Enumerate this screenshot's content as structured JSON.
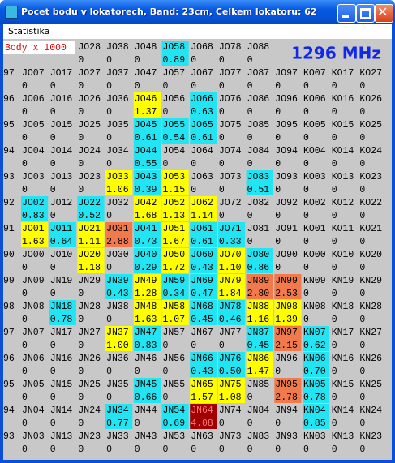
{
  "window": {
    "title": "Pocet bodu v lokatorech,  Band: 23cm,  Celkem lokatoru: 62",
    "menu": [
      "Statistika"
    ]
  },
  "label": "Body x 1000",
  "band_label": "1296 MHz",
  "top_row": [
    [
      "JO28",
      "0"
    ],
    [
      "JO38",
      "0"
    ],
    [
      "JO48",
      "0"
    ],
    [
      "JO58",
      "0.89",
      "#22e4f2"
    ],
    [
      "JO68",
      "0"
    ],
    [
      "JO78",
      "0"
    ],
    [
      "JO88",
      "0"
    ]
  ],
  "rows": [
    {
      "prefix": "97",
      "cells": [
        [
          "JO07",
          "0"
        ],
        [
          "JO17",
          "0"
        ],
        [
          "JO27",
          "0"
        ],
        [
          "JO37",
          "0"
        ],
        [
          "JO47",
          "0"
        ],
        [
          "JO57",
          "0"
        ],
        [
          "JO67",
          "0"
        ],
        [
          "JO77",
          "0"
        ],
        [
          "JO87",
          "0"
        ],
        [
          "JO97",
          "0"
        ],
        [
          "KO07",
          "0"
        ],
        [
          "KO17",
          "0"
        ],
        [
          "KO27",
          "0"
        ]
      ]
    },
    {
      "prefix": "96",
      "cells": [
        [
          "JO06",
          "0"
        ],
        [
          "JO16",
          "0"
        ],
        [
          "JO26",
          "0"
        ],
        [
          "JO36",
          "0"
        ],
        [
          "JO46",
          "1.37",
          "#ffff00"
        ],
        [
          "JO56",
          "0"
        ],
        [
          "JO66",
          "0.63",
          "#22e4f2"
        ],
        [
          "JO76",
          "0"
        ],
        [
          "JO86",
          "0"
        ],
        [
          "JO96",
          "0"
        ],
        [
          "KO06",
          "0"
        ],
        [
          "KO16",
          "0"
        ],
        [
          "KO26",
          "0"
        ]
      ]
    },
    {
      "prefix": "95",
      "cells": [
        [
          "JO05",
          "0"
        ],
        [
          "JO15",
          "0"
        ],
        [
          "JO25",
          "0"
        ],
        [
          "JO35",
          "0"
        ],
        [
          "JO45",
          "0.61",
          "#22e4f2"
        ],
        [
          "JO55",
          "0.54",
          "#22e4f2"
        ],
        [
          "JO65",
          "0.61",
          "#22e4f2"
        ],
        [
          "JO75",
          "0"
        ],
        [
          "JO85",
          "0"
        ],
        [
          "JO95",
          "0"
        ],
        [
          "KO05",
          "0"
        ],
        [
          "KO15",
          "0"
        ],
        [
          "KO25",
          "0"
        ]
      ]
    },
    {
      "prefix": "94",
      "cells": [
        [
          "JO04",
          "0"
        ],
        [
          "JO14",
          "0"
        ],
        [
          "JO24",
          "0"
        ],
        [
          "JO34",
          "0"
        ],
        [
          "JO44",
          "0.55",
          "#22e4f2"
        ],
        [
          "JO54",
          "0"
        ],
        [
          "JO64",
          "0"
        ],
        [
          "JO74",
          "0"
        ],
        [
          "JO84",
          "0"
        ],
        [
          "JO94",
          "0"
        ],
        [
          "KO04",
          "0"
        ],
        [
          "KO14",
          "0"
        ],
        [
          "KO24",
          "0"
        ]
      ]
    },
    {
      "prefix": "93",
      "cells": [
        [
          "JO03",
          "0"
        ],
        [
          "JO13",
          "0"
        ],
        [
          "JO23",
          "0"
        ],
        [
          "JO33",
          "1.06",
          "#ffff00"
        ],
        [
          "JO43",
          "0.39",
          "#22e4f2"
        ],
        [
          "JO53",
          "1.15",
          "#ffff00"
        ],
        [
          "JO63",
          "0"
        ],
        [
          "JO73",
          "0"
        ],
        [
          "JO83",
          "0.51",
          "#22e4f2"
        ],
        [
          "JO93",
          "0"
        ],
        [
          "KO03",
          "0"
        ],
        [
          "KO13",
          "0"
        ],
        [
          "KO23",
          "0"
        ]
      ]
    },
    {
      "prefix": "92",
      "cells": [
        [
          "JO02",
          "0.83",
          "#22e4f2"
        ],
        [
          "JO12",
          "0"
        ],
        [
          "JO22",
          "0.52",
          "#22e4f2"
        ],
        [
          "JO32",
          "0"
        ],
        [
          "JO42",
          "1.68",
          "#ffff00"
        ],
        [
          "JO52",
          "1.13",
          "#ffff00"
        ],
        [
          "JO62",
          "1.14",
          "#ffff00"
        ],
        [
          "JO72",
          "0"
        ],
        [
          "JO82",
          "0"
        ],
        [
          "JO92",
          "0"
        ],
        [
          "KO02",
          "0"
        ],
        [
          "KO12",
          "0"
        ],
        [
          "KO22",
          "0"
        ]
      ]
    },
    {
      "prefix": "91",
      "cells": [
        [
          "JO01",
          "1.63",
          "#ffff00"
        ],
        [
          "JO11",
          "0.64",
          "#22e4f2"
        ],
        [
          "JO21",
          "1.11",
          "#ffff00"
        ],
        [
          "JO31",
          "2.88",
          "#f07a4c"
        ],
        [
          "JO41",
          "0.73",
          "#22e4f2"
        ],
        [
          "JO51",
          "1.67",
          "#ffff00"
        ],
        [
          "JO61",
          "0.61",
          "#22e4f2"
        ],
        [
          "JO71",
          "0.33",
          "#22e4f2"
        ],
        [
          "JO81",
          "0"
        ],
        [
          "JO91",
          "0"
        ],
        [
          "KO01",
          "0"
        ],
        [
          "KO11",
          "0"
        ],
        [
          "KO21",
          "0"
        ]
      ]
    },
    {
      "prefix": "90",
      "cells": [
        [
          "JO00",
          "0"
        ],
        [
          "JO10",
          "0"
        ],
        [
          "JO20",
          "1.18",
          "#ffff00"
        ],
        [
          "JO30",
          "0"
        ],
        [
          "JO40",
          "0.29",
          "#22e4f2"
        ],
        [
          "JO50",
          "1.72",
          "#ffff00"
        ],
        [
          "JO60",
          "0.43",
          "#22e4f2"
        ],
        [
          "JO70",
          "1.10",
          "#ffff00"
        ],
        [
          "JO80",
          "0.86",
          "#22e4f2"
        ],
        [
          "JO90",
          "0"
        ],
        [
          "KO00",
          "0"
        ],
        [
          "KO10",
          "0"
        ],
        [
          "KO20",
          "0"
        ]
      ]
    },
    {
      "prefix": "99",
      "cells": [
        [
          "JN09",
          "0"
        ],
        [
          "JN19",
          "0"
        ],
        [
          "JN29",
          "0"
        ],
        [
          "JN39",
          "0.43",
          "#22e4f2"
        ],
        [
          "JN49",
          "1.28",
          "#ffff00"
        ],
        [
          "JN59",
          "0.34",
          "#22e4f2"
        ],
        [
          "JN69",
          "0.47",
          "#22e4f2"
        ],
        [
          "JN79",
          "1.84",
          "#ffff00"
        ],
        [
          "JN89",
          "2.80",
          "#f07a4c"
        ],
        [
          "JN99",
          "2.53",
          "#f07a4c"
        ],
        [
          "KN09",
          "0"
        ],
        [
          "KN19",
          "0"
        ],
        [
          "KN29",
          "0"
        ]
      ]
    },
    {
      "prefix": "98",
      "cells": [
        [
          "JN08",
          "0"
        ],
        [
          "JN18",
          "0.78",
          "#22e4f2"
        ],
        [
          "JN28",
          "0"
        ],
        [
          "JN38",
          "0"
        ],
        [
          "JN48",
          "1.63",
          "#ffff00"
        ],
        [
          "JN58",
          "1.07",
          "#ffff00"
        ],
        [
          "JN68",
          "0.45",
          "#22e4f2"
        ],
        [
          "JN78",
          "0.46",
          "#22e4f2"
        ],
        [
          "JN88",
          "1.16",
          "#ffff00"
        ],
        [
          "JN98",
          "1.39",
          "#ffff00"
        ],
        [
          "KN08",
          "0"
        ],
        [
          "KN18",
          "0"
        ],
        [
          "KN28",
          "0"
        ]
      ]
    },
    {
      "prefix": "97",
      "cells": [
        [
          "JN07",
          "0"
        ],
        [
          "JN17",
          "0"
        ],
        [
          "JN27",
          "0"
        ],
        [
          "JN37",
          "1.00",
          "#ffff00"
        ],
        [
          "JN47",
          "0.83",
          "#22e4f2"
        ],
        [
          "JN57",
          "0"
        ],
        [
          "JN67",
          "0"
        ],
        [
          "JN77",
          "0"
        ],
        [
          "JN87",
          "0.45",
          "#22e4f2"
        ],
        [
          "JN97",
          "2.15",
          "#f07a4c"
        ],
        [
          "KN07",
          "0.62",
          "#22e4f2"
        ],
        [
          "KN17",
          "0"
        ],
        [
          "KN27",
          "0"
        ]
      ]
    },
    {
      "prefix": "96",
      "cells": [
        [
          "JN06",
          "0"
        ],
        [
          "JN16",
          "0"
        ],
        [
          "JN26",
          "0"
        ],
        [
          "JN36",
          "0"
        ],
        [
          "JN46",
          "0"
        ],
        [
          "JN56",
          "0"
        ],
        [
          "JN66",
          "0.43",
          "#22e4f2"
        ],
        [
          "JN76",
          "0.50",
          "#22e4f2"
        ],
        [
          "JN86",
          "1.47",
          "#ffff00"
        ],
        [
          "JN96",
          "0"
        ],
        [
          "KN06",
          "0.70",
          "#22e4f2"
        ],
        [
          "KN16",
          "0"
        ],
        [
          "KN26",
          "0"
        ]
      ]
    },
    {
      "prefix": "95",
      "cells": [
        [
          "JN05",
          "0"
        ],
        [
          "JN15",
          "0"
        ],
        [
          "JN25",
          "0"
        ],
        [
          "JN35",
          "0"
        ],
        [
          "JN45",
          "0.66",
          "#22e4f2"
        ],
        [
          "JN55",
          "0"
        ],
        [
          "JN65",
          "1.57",
          "#ffff00"
        ],
        [
          "JN75",
          "1.08",
          "#ffff00"
        ],
        [
          "JN85",
          "0"
        ],
        [
          "JN95",
          "2.78",
          "#f07a4c"
        ],
        [
          "KN05",
          "0.78",
          "#22e4f2"
        ],
        [
          "KN15",
          "0"
        ],
        [
          "KN25",
          "0"
        ]
      ]
    },
    {
      "prefix": "94",
      "cells": [
        [
          "JN04",
          "0"
        ],
        [
          "JN14",
          "0"
        ],
        [
          "JN24",
          "0"
        ],
        [
          "JN34",
          "0.77",
          "#22e4f2"
        ],
        [
          "JN44",
          "0"
        ],
        [
          "JN54",
          "0.69",
          "#22e4f2"
        ],
        [
          "JN64",
          "4.08",
          "#a00000",
          "#ff7a7a"
        ],
        [
          "JN74",
          "0"
        ],
        [
          "JN84",
          "0"
        ],
        [
          "JN94",
          "0"
        ],
        [
          "KN04",
          "0.85",
          "#22e4f2"
        ],
        [
          "KN14",
          "0"
        ],
        [
          "KN24",
          "0"
        ]
      ]
    },
    {
      "prefix": "93",
      "cells": [
        [
          "JN03",
          "0"
        ],
        [
          "JN13",
          "0"
        ],
        [
          "JN23",
          "0"
        ],
        [
          "JN33",
          "0"
        ],
        [
          "JN43",
          "0"
        ],
        [
          "JN53",
          "0"
        ],
        [
          "JN63",
          "0"
        ],
        [
          "JN73",
          "0"
        ],
        [
          "JN83",
          "0"
        ],
        [
          "JN93",
          "0"
        ],
        [
          "KN03",
          "0"
        ],
        [
          "KN13",
          "0"
        ],
        [
          "KN23",
          "0"
        ]
      ]
    }
  ]
}
